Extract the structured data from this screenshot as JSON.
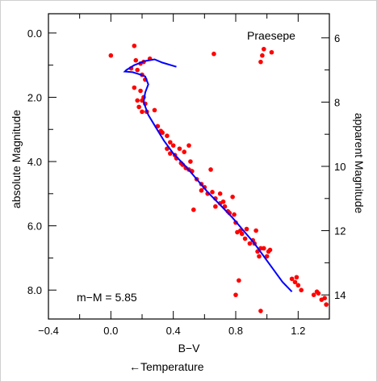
{
  "chart_data": {
    "type": "scatter",
    "title": "Praesepe",
    "xlabel": "B−V",
    "xlabel_note": "←Temperature",
    "ylabel_left": "absolute Magnitude",
    "ylabel_right": "apparent Magnitude",
    "annotation": "m−M = 5.85",
    "xlim": [
      -0.4,
      1.4
    ],
    "ylim_left": [
      -0.6,
      8.9
    ],
    "ylim_left_inverted": true,
    "ylim_right": [
      5.25,
      14.75
    ],
    "ylim_right_inverted": true,
    "x_ticks": [
      "−0.4",
      "0.0",
      "0.4",
      "0.8",
      "1.2"
    ],
    "y_ticks_left": [
      "0.0",
      "2.0",
      "4.0",
      "6.0",
      "8.0"
    ],
    "y_ticks_right": [
      "6",
      "8",
      "10",
      "12",
      "14"
    ],
    "series": [
      {
        "kind": "points",
        "color": "#ff0000",
        "points": [
          [
            0.0,
            0.7
          ],
          [
            0.15,
            0.4
          ],
          [
            0.16,
            0.85
          ],
          [
            0.19,
            0.95
          ],
          [
            0.21,
            0.9
          ],
          [
            0.25,
            0.8
          ],
          [
            0.13,
            1.1
          ],
          [
            0.17,
            1.15
          ],
          [
            0.2,
            1.3
          ],
          [
            0.22,
            1.45
          ],
          [
            0.15,
            1.7
          ],
          [
            0.19,
            1.8
          ],
          [
            0.17,
            2.1
          ],
          [
            0.2,
            2.1
          ],
          [
            0.18,
            2.3
          ],
          [
            0.22,
            2.2
          ],
          [
            0.23,
            2.45
          ],
          [
            0.2,
            2.45
          ],
          [
            0.21,
            2.0
          ],
          [
            0.28,
            2.4
          ],
          [
            0.3,
            2.9
          ],
          [
            0.32,
            3.05
          ],
          [
            0.33,
            3.1
          ],
          [
            0.36,
            3.2
          ],
          [
            0.36,
            3.6
          ],
          [
            0.38,
            3.4
          ],
          [
            0.38,
            3.75
          ],
          [
            0.4,
            3.5
          ],
          [
            0.41,
            3.8
          ],
          [
            0.42,
            3.9
          ],
          [
            0.45,
            4.05
          ],
          [
            0.44,
            3.6
          ],
          [
            0.46,
            4.1
          ],
          [
            0.47,
            3.7
          ],
          [
            0.48,
            4.2
          ],
          [
            0.5,
            4.25
          ],
          [
            0.52,
            4.3
          ],
          [
            0.5,
            3.5
          ],
          [
            0.51,
            4.0
          ],
          [
            0.55,
            4.55
          ],
          [
            0.53,
            5.5
          ],
          [
            0.58,
            4.7
          ],
          [
            0.58,
            4.9
          ],
          [
            0.6,
            4.8
          ],
          [
            0.62,
            5.0
          ],
          [
            0.64,
            4.25
          ],
          [
            0.65,
            4.95
          ],
          [
            0.67,
            5.15
          ],
          [
            0.67,
            5.4
          ],
          [
            0.66,
            0.65
          ],
          [
            0.7,
            5.0
          ],
          [
            0.7,
            5.3
          ],
          [
            0.72,
            5.25
          ],
          [
            0.73,
            5.4
          ],
          [
            0.75,
            5.55
          ],
          [
            0.76,
            5.6
          ],
          [
            0.78,
            5.1
          ],
          [
            0.79,
            5.65
          ],
          [
            0.8,
            5.9
          ],
          [
            0.81,
            6.2
          ],
          [
            0.83,
            6.15
          ],
          [
            0.84,
            6.25
          ],
          [
            0.86,
            6.4
          ],
          [
            0.87,
            6.1
          ],
          [
            0.89,
            6.55
          ],
          [
            0.91,
            6.45
          ],
          [
            0.92,
            6.55
          ],
          [
            0.93,
            6.15
          ],
          [
            0.94,
            6.8
          ],
          [
            0.95,
            6.95
          ],
          [
            0.96,
            6.7
          ],
          [
            0.98,
            6.7
          ],
          [
            1.0,
            6.95
          ],
          [
            1.01,
            6.8
          ],
          [
            1.02,
            6.75
          ],
          [
            0.8,
            8.15
          ],
          [
            0.82,
            7.7
          ],
          [
            0.96,
            8.65
          ],
          [
            0.96,
            0.9
          ],
          [
            0.97,
            0.7
          ],
          [
            0.98,
            0.5
          ],
          [
            1.03,
            0.6
          ],
          [
            1.16,
            7.65
          ],
          [
            1.18,
            7.75
          ],
          [
            1.19,
            7.6
          ],
          [
            1.2,
            7.85
          ],
          [
            1.22,
            8.0
          ],
          [
            1.3,
            8.15
          ],
          [
            1.32,
            8.05
          ],
          [
            1.33,
            8.1
          ],
          [
            1.35,
            8.3
          ],
          [
            1.38,
            8.45
          ],
          [
            1.37,
            8.25
          ]
        ]
      },
      {
        "kind": "line",
        "color": "#0000ff",
        "points": [
          [
            0.42,
            1.05
          ],
          [
            0.33,
            0.92
          ],
          [
            0.28,
            0.82
          ],
          [
            0.22,
            0.87
          ],
          [
            0.15,
            1.0
          ],
          [
            0.1,
            1.15
          ],
          [
            0.09,
            1.2
          ],
          [
            0.14,
            1.22
          ],
          [
            0.18,
            1.28
          ],
          [
            0.22,
            1.35
          ],
          [
            0.24,
            1.6
          ],
          [
            0.22,
            1.85
          ],
          [
            0.21,
            2.15
          ],
          [
            0.24,
            2.55
          ],
          [
            0.29,
            2.95
          ],
          [
            0.34,
            3.35
          ],
          [
            0.4,
            3.75
          ],
          [
            0.48,
            4.15
          ],
          [
            0.55,
            4.55
          ],
          [
            0.62,
            4.95
          ],
          [
            0.7,
            5.35
          ],
          [
            0.78,
            5.75
          ],
          [
            0.85,
            6.15
          ],
          [
            0.92,
            6.55
          ],
          [
            0.98,
            6.95
          ],
          [
            1.04,
            7.35
          ],
          [
            1.1,
            7.75
          ],
          [
            1.16,
            8.05
          ]
        ]
      }
    ]
  }
}
